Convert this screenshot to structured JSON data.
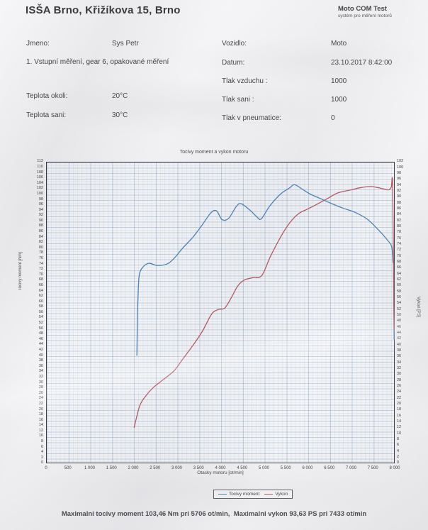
{
  "header": {
    "company": "ISŠA Brno, Křižíkova 15, Brno",
    "app_name": "Moto COM Test",
    "app_subtitle": "systém pro měření motorů"
  },
  "info": {
    "left": [
      {
        "label": "Jmeno:",
        "value": "Sys Petr"
      },
      {
        "label": "Teplota okoli:",
        "value": "20°C"
      },
      {
        "label": "Teplota sani:",
        "value": "30°C"
      }
    ],
    "note": "1. Vstupní měření, gear 6, opakované měření",
    "right": [
      {
        "label": "Vozidlo:",
        "value": "Moto"
      },
      {
        "label": "Datum:",
        "value": "23.10.2017 8:42:00"
      },
      {
        "label": "Tlak vzduchu :",
        "value": "1000"
      },
      {
        "label": "Tlak sani :",
        "value": "1000"
      },
      {
        "label": "Tlak v pneumatice:",
        "value": "0"
      }
    ]
  },
  "chart_data": {
    "type": "line",
    "title": "Tocivy moment a vykon motoru",
    "xlabel": "Otacky motoru [ot/min]",
    "ylabel_left": "Tocivy moment [Nm]",
    "ylabel_right": "Vykon [PS]",
    "grid": true,
    "legend_position": "bottom",
    "x_axis": {
      "min": 0,
      "max": 8000,
      "tick_step": 500,
      "tick_labels": [
        "0",
        "500",
        "1 000",
        "1 500",
        "2 000",
        "2 500",
        "3 000",
        "3 500",
        "4 000",
        "4 500",
        "5 000",
        "5 500",
        "6 000",
        "6 500",
        "7 000",
        "7 500",
        "8 000"
      ]
    },
    "y_left": {
      "min": 0,
      "max": 112,
      "tick_step": 2
    },
    "y_right": {
      "min": 0,
      "max": 102,
      "tick_step": 2
    },
    "series": [
      {
        "name": "Tocivy moment",
        "axis": "left",
        "unit": "Nm",
        "color": "#4d82b4",
        "points": [
          [
            2085,
            40
          ],
          [
            2095,
            52
          ],
          [
            2110,
            62
          ],
          [
            2140,
            70
          ],
          [
            2230,
            73
          ],
          [
            2360,
            74.3
          ],
          [
            2550,
            73.5
          ],
          [
            2770,
            74
          ],
          [
            2930,
            76
          ],
          [
            3140,
            80
          ],
          [
            3370,
            84
          ],
          [
            3580,
            88.5
          ],
          [
            3780,
            93
          ],
          [
            3910,
            93.8
          ],
          [
            4040,
            90.5
          ],
          [
            4190,
            91
          ],
          [
            4370,
            95.5
          ],
          [
            4480,
            96.4
          ],
          [
            4680,
            94
          ],
          [
            4840,
            91.5
          ],
          [
            4940,
            90.8
          ],
          [
            5130,
            95.5
          ],
          [
            5380,
            100
          ],
          [
            5590,
            102.3
          ],
          [
            5706,
            103.46
          ],
          [
            5910,
            101.5
          ],
          [
            6060,
            100
          ],
          [
            6270,
            98.5
          ],
          [
            6520,
            96.7
          ],
          [
            6810,
            94.8
          ],
          [
            7090,
            93.2
          ],
          [
            7360,
            90.8
          ],
          [
            7620,
            86.8
          ],
          [
            7850,
            82.6
          ],
          [
            7930,
            80.5
          ],
          [
            7950,
            77.5
          ],
          [
            7962,
            74.5
          ],
          [
            7975,
            74
          ],
          [
            7985,
            46
          ]
        ]
      },
      {
        "name": "Vykon",
        "axis": "right",
        "unit": "PS",
        "color": "#b05a64",
        "points": [
          [
            2020,
            12
          ],
          [
            2150,
            19.5
          ],
          [
            2300,
            23
          ],
          [
            2450,
            25.5
          ],
          [
            2600,
            27.3
          ],
          [
            2750,
            29
          ],
          [
            2950,
            31.5
          ],
          [
            3150,
            35.5
          ],
          [
            3400,
            40.5
          ],
          [
            3600,
            45
          ],
          [
            3800,
            50.5
          ],
          [
            3950,
            52
          ],
          [
            4100,
            52.5
          ],
          [
            4250,
            56
          ],
          [
            4400,
            60
          ],
          [
            4550,
            62
          ],
          [
            4750,
            62.8
          ],
          [
            4950,
            63.5
          ],
          [
            5150,
            70
          ],
          [
            5400,
            77
          ],
          [
            5600,
            81.5
          ],
          [
            5800,
            84.5
          ],
          [
            6000,
            86
          ],
          [
            6200,
            87.5
          ],
          [
            6450,
            89.5
          ],
          [
            6700,
            91.5
          ],
          [
            7000,
            92.5
          ],
          [
            7200,
            93.2
          ],
          [
            7433,
            93.63
          ],
          [
            7600,
            93.3
          ],
          [
            7750,
            92.8
          ],
          [
            7870,
            92.5
          ],
          [
            7920,
            93.3
          ],
          [
            7955,
            93
          ],
          [
            7985,
            45
          ]
        ]
      }
    ],
    "annotations": {
      "max_torque": "103,46 Nm pri 5706 ot/min",
      "max_power": "93,63 PS pri 7433 ot/min"
    }
  },
  "legend": {
    "items": [
      {
        "label": "Tocivy moment",
        "color": "#4d82b4"
      },
      {
        "label": "Vykon",
        "color": "#b05a64"
      }
    ]
  },
  "footer": {
    "summary": "Maximalni tocivy moment 103,46 Nm pri 5706 ot/min,  Maximalni vykon 93,63 PS pri 7433 ot/min"
  }
}
